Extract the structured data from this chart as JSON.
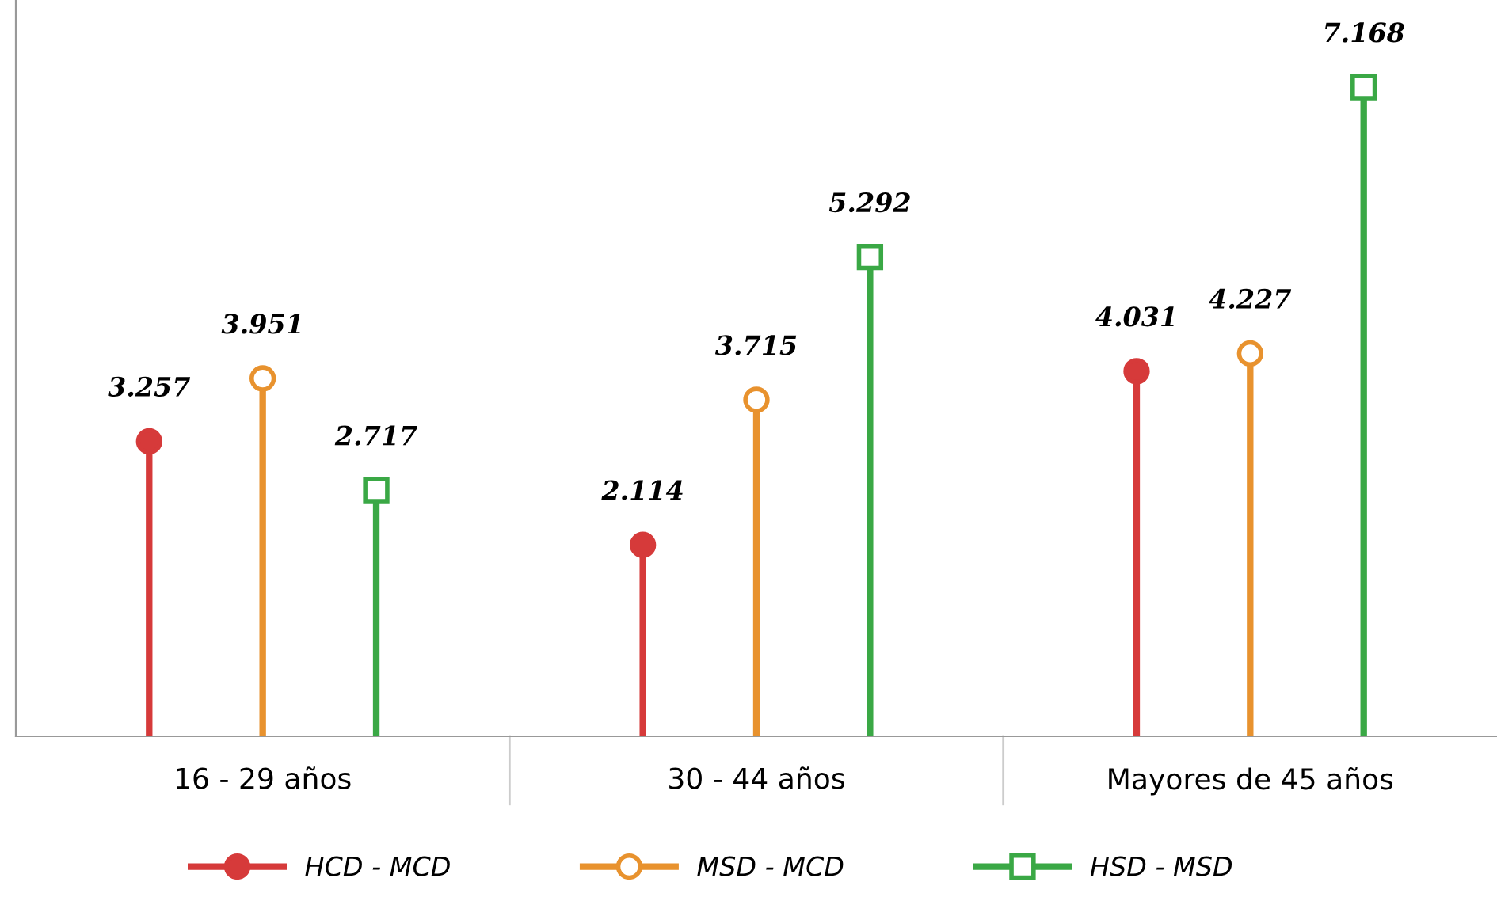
{
  "chart_data": {
    "type": "lollipop",
    "categories": [
      "16 - 29 años",
      "30 - 44 años",
      "Mayores de 45 años"
    ],
    "series": [
      {
        "name": "HCD - MCD",
        "color": "#d63a3a",
        "marker": "circle",
        "values": [
          3.257,
          2.114,
          4.031
        ]
      },
      {
        "name": "MSD - MCD",
        "color": "#e8922e",
        "marker": "circle",
        "values": [
          3.951,
          3.715,
          4.227
        ]
      },
      {
        "name": "HSD - MSD",
        "color": "#3aa845",
        "marker": "square",
        "values": [
          2.717,
          5.292,
          7.168
        ]
      }
    ],
    "ylim": [
      0,
      8.13
    ],
    "data_labels": true,
    "legend": "bottom",
    "grid": false
  }
}
